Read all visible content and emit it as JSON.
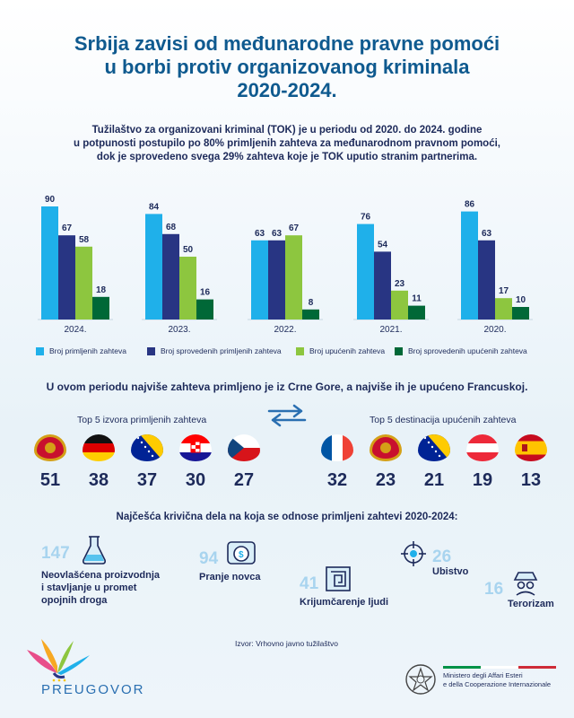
{
  "title_lines": [
    "Srbija zavisi od međunarodne pravne pomoći",
    "u borbi protiv organizovanog kriminala",
    "2020-2024."
  ],
  "intro_lines": [
    "Tužilaštvo za organizovani kriminal (TOK) je u periodu od 2020. do 2024. godine",
    "u potpunosti postupilo po 80% primljenih zahteva za međunarodnom pravnom pomoći,",
    "dok je sprovedeno svega 29% zahteva koje je TOK uputio stranim partnerima."
  ],
  "chart_data": {
    "type": "bar",
    "categories": [
      "2024.",
      "2023.",
      "2022.",
      "2021.",
      "2020."
    ],
    "series": [
      {
        "name": "Broj primljenih zahteva",
        "color": "#1fb0ea",
        "values": [
          90,
          84,
          63,
          76,
          86
        ]
      },
      {
        "name": "Broj sprovedenih primljenih zahteva",
        "color": "#283583",
        "values": [
          67,
          68,
          63,
          54,
          63
        ]
      },
      {
        "name": "Broj upućenih zahteva",
        "color": "#8dc63f",
        "values": [
          58,
          50,
          67,
          23,
          17
        ]
      },
      {
        "name": "Broj sprovedenih upućenih zahteva",
        "color": "#006837",
        "values": [
          18,
          16,
          8,
          11,
          10
        ]
      }
    ],
    "ylim": [
      0,
      100
    ],
    "legend_position": "bottom",
    "grid": false
  },
  "subhead": "U ovom periodu najviše zahteva primljeno je iz Crne Gore, a najviše ih je upućeno Francuskoj.",
  "sources": {
    "title": "Top 5 izvora primljenih zahteva",
    "items": [
      {
        "flag": "montenegro-flag",
        "value": "51"
      },
      {
        "flag": "germany-flag",
        "value": "38"
      },
      {
        "flag": "bosnia-flag",
        "value": "37"
      },
      {
        "flag": "croatia-flag",
        "value": "30"
      },
      {
        "flag": "czech-flag",
        "value": "27"
      }
    ]
  },
  "destinations": {
    "title": "Top 5 destinacija upućenih zahteva",
    "items": [
      {
        "flag": "france-flag",
        "value": "32"
      },
      {
        "flag": "montenegro-flag",
        "value": "23"
      },
      {
        "flag": "bosnia-flag",
        "value": "21"
      },
      {
        "flag": "austria-flag",
        "value": "19"
      },
      {
        "flag": "spain-flag",
        "value": "13"
      }
    ]
  },
  "offenses": {
    "heading": "Najčešća krivična dela na koja se odnose primljeni zahtevi 2020-2024:",
    "items": [
      {
        "value": "147",
        "label_lines": [
          "Neovlašćena proizvodnja",
          "i stavljanje u promet",
          "opojnih droga"
        ],
        "icon": "lab-flask-icon"
      },
      {
        "value": "94",
        "label_lines": [
          "Pranje novca"
        ],
        "icon": "money-wash-icon"
      },
      {
        "value": "41",
        "label_lines": [
          "Krijumčarenje ljudi"
        ],
        "icon": "maze-icon"
      },
      {
        "value": "26",
        "label_lines": [
          "Ubistvo"
        ],
        "icon": "crosshair-icon"
      },
      {
        "value": "16",
        "label_lines": [
          "Terorizam"
        ],
        "icon": "spy-icon"
      }
    ]
  },
  "source_note": "Izvor: Vrhovno javno tužilaštvo",
  "logo_text": "PREUGOVOR",
  "ministry_lines": [
    "Ministero degli Affari Esteri",
    "e della Cooperazione Internazionale"
  ]
}
